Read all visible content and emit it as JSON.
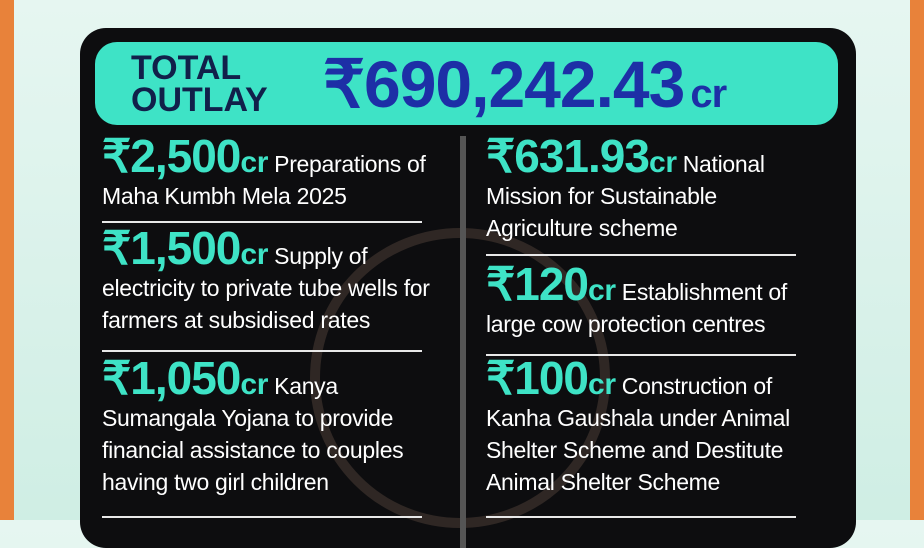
{
  "header": {
    "label": "TOTAL OUTLAY",
    "amount": "₹690,242.43",
    "unit": "cr"
  },
  "left_items": [
    {
      "amount": "₹2,500",
      "unit": "cr",
      "text": "Preparations of Maha Kumbh Mela 2025"
    },
    {
      "amount": "₹1,500",
      "unit": "cr",
      "text": "Supply of electricity to private tube wells for farmers at subsidised rates"
    },
    {
      "amount": "₹1,050",
      "unit": "cr",
      "text": "Kanya Sumangala Yojana to provide financial assistance to couples having two girl children"
    }
  ],
  "right_items": [
    {
      "amount": "₹631.93",
      "unit": "cr",
      "text": "National Mission for Sustainable Agriculture scheme"
    },
    {
      "amount": "₹120",
      "unit": "cr",
      "text": "Establishment of large cow protection centres"
    },
    {
      "amount": "₹100",
      "unit": "cr",
      "text": "Construction of Kanha Gaushala under Animal Shelter Scheme and Destitute Animal Shelter Scheme"
    }
  ]
}
